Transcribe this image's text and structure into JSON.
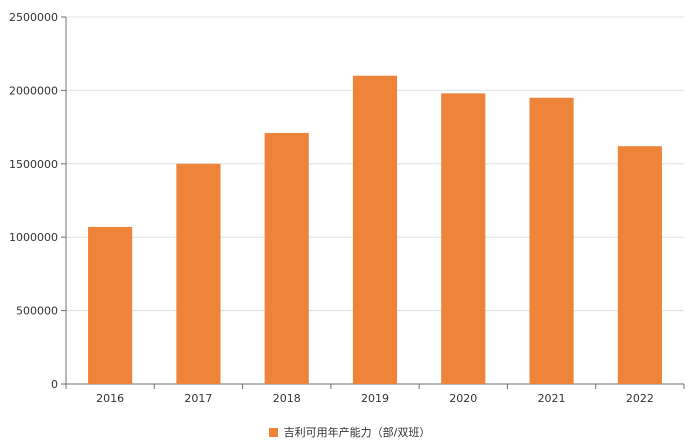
{
  "chart_data": {
    "type": "bar",
    "categories": [
      "2016",
      "2017",
      "2018",
      "2019",
      "2020",
      "2021",
      "2022"
    ],
    "series": [
      {
        "name": "吉利可用年产能力（部/双班）",
        "values": [
          1070000,
          1500000,
          1710000,
          2100000,
          1980000,
          1950000,
          1620000
        ],
        "color": "#ED843A"
      }
    ],
    "ylim": [
      0,
      2500000
    ],
    "yticks": [
      "0",
      "500000",
      "1000000",
      "1500000",
      "2000000",
      "2500000"
    ],
    "grid": true,
    "legend_position": "bottom"
  }
}
